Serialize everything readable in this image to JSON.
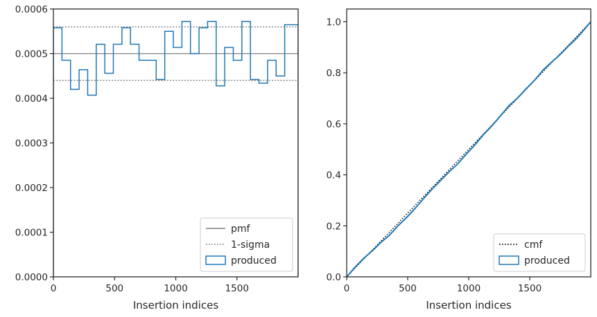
{
  "chart_data": [
    {
      "type": "step",
      "xlabel": "Insertion indices",
      "ylabel": "",
      "xlim": [
        0,
        2000
      ],
      "ylim": [
        0,
        0.0006
      ],
      "xticks": [
        0,
        500,
        1000,
        1500
      ],
      "xtick_labels": [
        "0",
        "500",
        "1000",
        "1500"
      ],
      "yticks": [
        0,
        0.0001,
        0.0002,
        0.0003,
        0.0004,
        0.0005,
        0.0006
      ],
      "ytick_labels": [
        "0.0000",
        "0.0001",
        "0.0002",
        "0.0003",
        "0.0004",
        "0.0005",
        "0.0006"
      ],
      "reference_lines": [
        {
          "name": "pmf",
          "y": 0.0005,
          "style": "solid",
          "color": "#7f7f7f"
        },
        {
          "name": "1-sigma",
          "y": 0.00056,
          "style": "dotted",
          "color": "#7f7f7f"
        },
        {
          "name": "1-sigma",
          "y": 0.00044,
          "style": "dotted",
          "color": "#7f7f7f"
        }
      ],
      "series": [
        {
          "name": "produced",
          "color": "#1f77b4",
          "bin_edges": [
            0,
            70,
            140,
            210,
            280,
            350,
            420,
            490,
            560,
            630,
            700,
            770,
            840,
            910,
            980,
            1050,
            1120,
            1190,
            1260,
            1330,
            1400,
            1470,
            1540,
            1610,
            1680,
            1750,
            1820,
            1890,
            1960,
            2000
          ],
          "values": [
            0.000558,
            0.000485,
            0.00042,
            0.000464,
            0.000407,
            0.000521,
            0.000456,
            0.000521,
            0.000558,
            0.000521,
            0.000485,
            0.000485,
            0.000442,
            0.00055,
            0.000514,
            0.000572,
            0.0005,
            0.000558,
            0.000572,
            0.000428,
            0.000514,
            0.000485,
            0.000572,
            0.000442,
            0.000434,
            0.000485,
            0.00045,
            0.000565,
            0.000565
          ]
        }
      ],
      "legend": {
        "placement": "lower-right",
        "entries": [
          {
            "label": "pmf",
            "kind": "solid",
            "color": "#7f7f7f"
          },
          {
            "label": "1-sigma",
            "kind": "dotted",
            "color": "#7f7f7f"
          },
          {
            "label": "produced",
            "kind": "patch",
            "color": "#1f77b4"
          }
        ]
      }
    },
    {
      "type": "line",
      "xlabel": "Insertion indices",
      "ylabel": "",
      "xlim": [
        0,
        2000
      ],
      "ylim": [
        0,
        1.05
      ],
      "xticks": [
        0,
        500,
        1000,
        1500
      ],
      "xtick_labels": [
        "0",
        "500",
        "1000",
        "1500"
      ],
      "yticks": [
        0,
        0.2,
        0.4,
        0.6,
        0.8,
        1.0
      ],
      "ytick_labels": [
        "0.0",
        "0.2",
        "0.4",
        "0.6",
        "0.8",
        "1.0"
      ],
      "series": [
        {
          "name": "cmf",
          "color": "#000000",
          "style": "dotted",
          "x": [
            0,
            2000
          ],
          "y": [
            0,
            1.0
          ]
        },
        {
          "name": "produced",
          "color": "#1f77b4",
          "style": "solid",
          "x": [
            0,
            70,
            140,
            210,
            280,
            350,
            420,
            490,
            560,
            630,
            700,
            770,
            840,
            910,
            980,
            1050,
            1120,
            1190,
            1260,
            1330,
            1400,
            1470,
            1540,
            1610,
            1680,
            1750,
            1820,
            1890,
            1960,
            2000
          ],
          "y": [
            0,
            0.039,
            0.073,
            0.102,
            0.135,
            0.163,
            0.2,
            0.232,
            0.268,
            0.307,
            0.344,
            0.378,
            0.412,
            0.443,
            0.481,
            0.517,
            0.557,
            0.592,
            0.631,
            0.671,
            0.701,
            0.737,
            0.771,
            0.811,
            0.842,
            0.872,
            0.906,
            0.938,
            0.977,
            1.0
          ]
        }
      ],
      "legend": {
        "placement": "lower-right",
        "entries": [
          {
            "label": "cmf",
            "kind": "dotted",
            "color": "#000000"
          },
          {
            "label": "produced",
            "kind": "patch",
            "color": "#1f77b4"
          }
        ]
      }
    }
  ]
}
